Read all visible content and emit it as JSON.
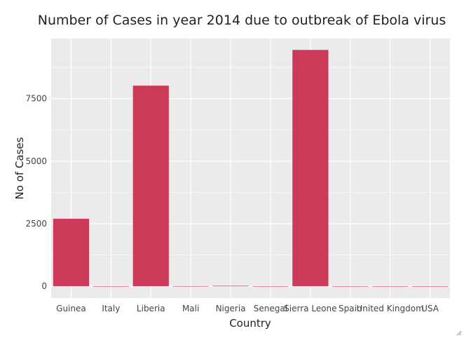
{
  "chart_data": {
    "type": "bar",
    "title": "Number of Cases in year 2014 due to outbreak of Ebola virus",
    "xlabel": "Country",
    "ylabel": "No of Cases",
    "categories": [
      "Guinea",
      "Italy",
      "Liberia",
      "Mali",
      "Nigeria",
      "Senegal",
      "Sierra Leone",
      "Spain",
      "United Kingdom",
      "USA"
    ],
    "values": [
      2700,
      1,
      8018,
      8,
      20,
      1,
      9446,
      1,
      1,
      4
    ],
    "yticks": [
      0,
      2500,
      5000,
      7500
    ],
    "ytick_labels": [
      "0",
      "2500",
      "5000",
      "7500"
    ],
    "ylim": [
      -470,
      9900
    ],
    "grid": true,
    "legend": "none",
    "colors": {
      "bar": "#cc3a59",
      "panel": "#ebebeb",
      "grid": "#ffffff"
    }
  },
  "ui": {
    "resize_grip_icon": "resize-grip-icon"
  }
}
